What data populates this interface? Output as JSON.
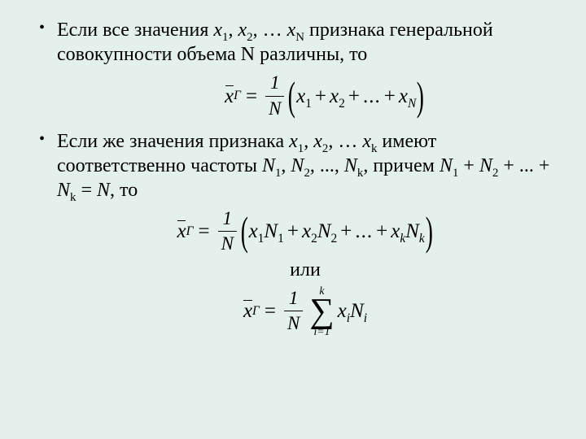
{
  "background_color": "#e4f0ec",
  "text_color": "#000000",
  "font_family": "Times New Roman",
  "base_font_size_pt": 18,
  "bullets": [
    {
      "text_parts": {
        "p1": "Если все значения ",
        "x1": "x",
        "s1": "1",
        "c1": ", ",
        "x2": "x",
        "s2": "2",
        "c2": ", … ",
        "x3": "x",
        "s3": "N",
        "p2": " признака генеральной совокупности объема N различны, то"
      }
    },
    {
      "text_parts": {
        "p1": "Если же значения признака ",
        "x1": "x",
        "s1": "1",
        "c1": ", ",
        "x2": "x",
        "s2": "2",
        "c2": ", … ",
        "x3": "x",
        "s3": "k",
        "p2": " имеют соответственно частоты ",
        "n1": "N",
        "ns1": "1",
        "c3": ", ",
        "n2": "N",
        "ns2": "2",
        "c4": ", ..., ",
        "n3": "N",
        "ns3": "k",
        "p3": ", причем ",
        "eq1": "N",
        "es1": "1",
        "pl1": " + ",
        "eq2": "N",
        "es2": "2",
        "pl2": " + ... + ",
        "eq3": "N",
        "es3": "k",
        "eqs": " = ",
        "eq4": "N",
        "p4": ", то"
      }
    }
  ],
  "formula1": {
    "lhs_var": "x",
    "lhs_sub": "Г",
    "frac_num": "1",
    "frac_den": "N",
    "terms": {
      "t1v": "x",
      "t1s": "1",
      "t2v": "x",
      "t2s": "2",
      "dots": "...",
      "tnv": "x",
      "tns": "N"
    }
  },
  "formula2": {
    "lhs_var": "x",
    "lhs_sub": "Г",
    "frac_num": "1",
    "frac_den": "N",
    "terms": {
      "t1v": "x",
      "t1s": "1",
      "t1n": "N",
      "t1ns": "1",
      "t2v": "x",
      "t2s": "2",
      "t2n": "N",
      "t2ns": "2",
      "dots": "...",
      "tkv": "x",
      "tks": "k",
      "tkn": "N",
      "tkns": "k"
    }
  },
  "connector": "или",
  "formula3": {
    "lhs_var": "x",
    "lhs_sub": "Г",
    "frac_num": "1",
    "frac_den": "N",
    "sum_lower": "i=1",
    "sum_upper": "k",
    "term_v": "x",
    "term_s": "i",
    "term_n": "N",
    "term_ns": "i"
  }
}
